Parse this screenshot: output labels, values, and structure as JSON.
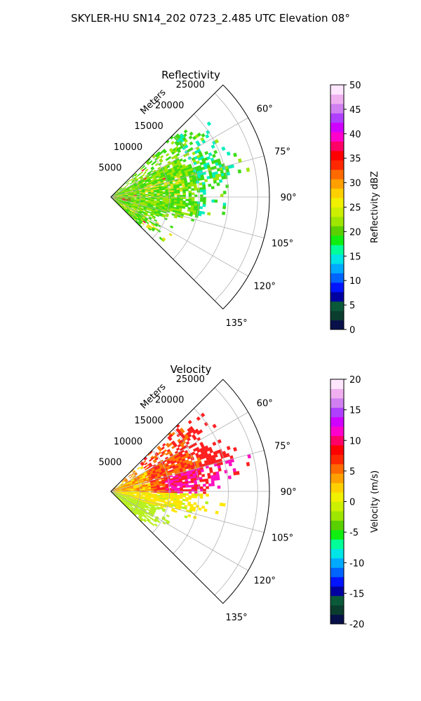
{
  "suptitle": "SKYLER-HU  SN14_202  0723_2.485 UTC Elevation 08°",
  "chart_data": [
    {
      "type": "heatmap",
      "projection": "polar-sector",
      "title": "Reflectivity",
      "radial_label": "Meters",
      "radial_ticks": [
        "5000",
        "10000",
        "15000",
        "20000",
        "25000"
      ],
      "radial_tick_values": [
        5000,
        10000,
        15000,
        20000,
        25000
      ],
      "rlim": [
        0,
        27000
      ],
      "theta_range_deg": [
        45,
        135
      ],
      "theta_ticks": [
        "60°",
        "75°",
        "90°",
        "105°",
        "120°",
        "135°"
      ],
      "theta_tick_values": [
        60,
        75,
        90,
        105,
        120,
        135
      ],
      "grid": true,
      "colorbar": {
        "label": "Reflectivity dBZ",
        "range": [
          0,
          50
        ],
        "ticks": [
          "0",
          "5",
          "10",
          "15",
          "20",
          "25",
          "30",
          "35",
          "40",
          "45",
          "50"
        ],
        "tick_values": [
          0,
          5,
          10,
          15,
          20,
          25,
          30,
          35,
          40,
          45,
          50
        ],
        "stops": [
          "#08104a",
          "#0b3d2e",
          "#0a5a3a",
          "#0000a0",
          "#0014ff",
          "#0064ff",
          "#00aaff",
          "#00e5e5",
          "#00ff99",
          "#10ee10",
          "#5ad000",
          "#9ee600",
          "#ccf000",
          "#f0f000",
          "#ffd000",
          "#ffa000",
          "#ff6a00",
          "#ff2800",
          "#ff0000",
          "#ff0066",
          "#ff00cc",
          "#d000ff",
          "#b040ff",
          "#d080f0",
          "#f0b0f0",
          "#ffe6ff"
        ]
      },
      "colors": {
        "dominant_near": "#9ee600",
        "dominant_far": "#3cdc14",
        "edge": "#00eebb",
        "core_highlight": "#e8e020",
        "cell": "#ff1040"
      }
    },
    {
      "type": "heatmap",
      "projection": "polar-sector",
      "title": "Velocity",
      "radial_label": "Meters",
      "radial_ticks": [
        "5000",
        "10000",
        "15000",
        "20000",
        "25000"
      ],
      "radial_tick_values": [
        5000,
        10000,
        15000,
        20000,
        25000
      ],
      "rlim": [
        0,
        27000
      ],
      "theta_range_deg": [
        45,
        135
      ],
      "theta_ticks": [
        "60°",
        "75°",
        "90°",
        "105°",
        "120°",
        "135°"
      ],
      "theta_tick_values": [
        60,
        75,
        90,
        105,
        120,
        135
      ],
      "grid": true,
      "colorbar": {
        "label": "Velocity (m/s)",
        "range": [
          -20,
          20
        ],
        "ticks": [
          "-20",
          "-15",
          "-10",
          "-5",
          "0",
          "5",
          "10",
          "15",
          "20"
        ],
        "tick_values": [
          -20,
          -15,
          -10,
          -5,
          0,
          5,
          10,
          15,
          20
        ],
        "stops": [
          "#08104a",
          "#0b3d2e",
          "#0a5a3a",
          "#0000a0",
          "#0014ff",
          "#0064ff",
          "#00aaff",
          "#00e5e5",
          "#00ff99",
          "#10ee10",
          "#5ad000",
          "#9ee600",
          "#ccf000",
          "#f0f000",
          "#ffd000",
          "#ffa000",
          "#ff6a00",
          "#ff2800",
          "#ff0000",
          "#ff0066",
          "#ff00cc",
          "#d000ff",
          "#b040ff",
          "#d080f0",
          "#f0b0f0",
          "#ffe6ff"
        ]
      },
      "colors": {
        "approaching": "#b8f020",
        "near_zero": "#ffe600",
        "receding_mid": "#ff7a00",
        "receding_high": "#ff2020",
        "receding_max": "#ff10c0"
      }
    }
  ]
}
